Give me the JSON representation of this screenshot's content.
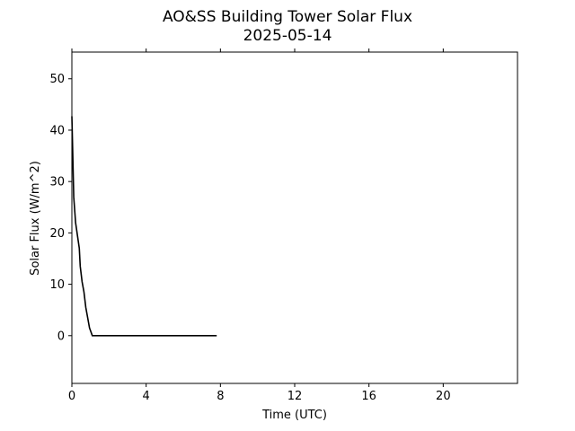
{
  "chart_data": {
    "type": "line",
    "title": "AO&SS Building Tower Solar Flux",
    "subtitle": "2025-05-14",
    "x_label": "Time (UTC)",
    "y_label": "Solar Flux (W/m^2)",
    "x": [
      0,
      0.05,
      0.1,
      0.2,
      0.3,
      0.4,
      0.45,
      0.55,
      0.65,
      0.75,
      0.85,
      0.95,
      1.1,
      2,
      3,
      4,
      5,
      6,
      7,
      7.8
    ],
    "series": [
      {
        "name": "Solar Flux",
        "color": "#000000",
        "values": [
          42.7,
          35,
          27,
          22,
          19.5,
          17,
          13.5,
          10.5,
          8.5,
          5.5,
          3.5,
          1.5,
          0,
          0,
          0,
          0,
          0,
          0,
          0,
          0
        ]
      }
    ],
    "xlim": [
      0,
      24
    ],
    "xticks": [
      0,
      4,
      8,
      12,
      16,
      20
    ],
    "ylim": [
      -9.3,
      55.2
    ],
    "yticks": [
      0,
      10,
      20,
      30,
      40,
      50
    ],
    "grid": false
  }
}
